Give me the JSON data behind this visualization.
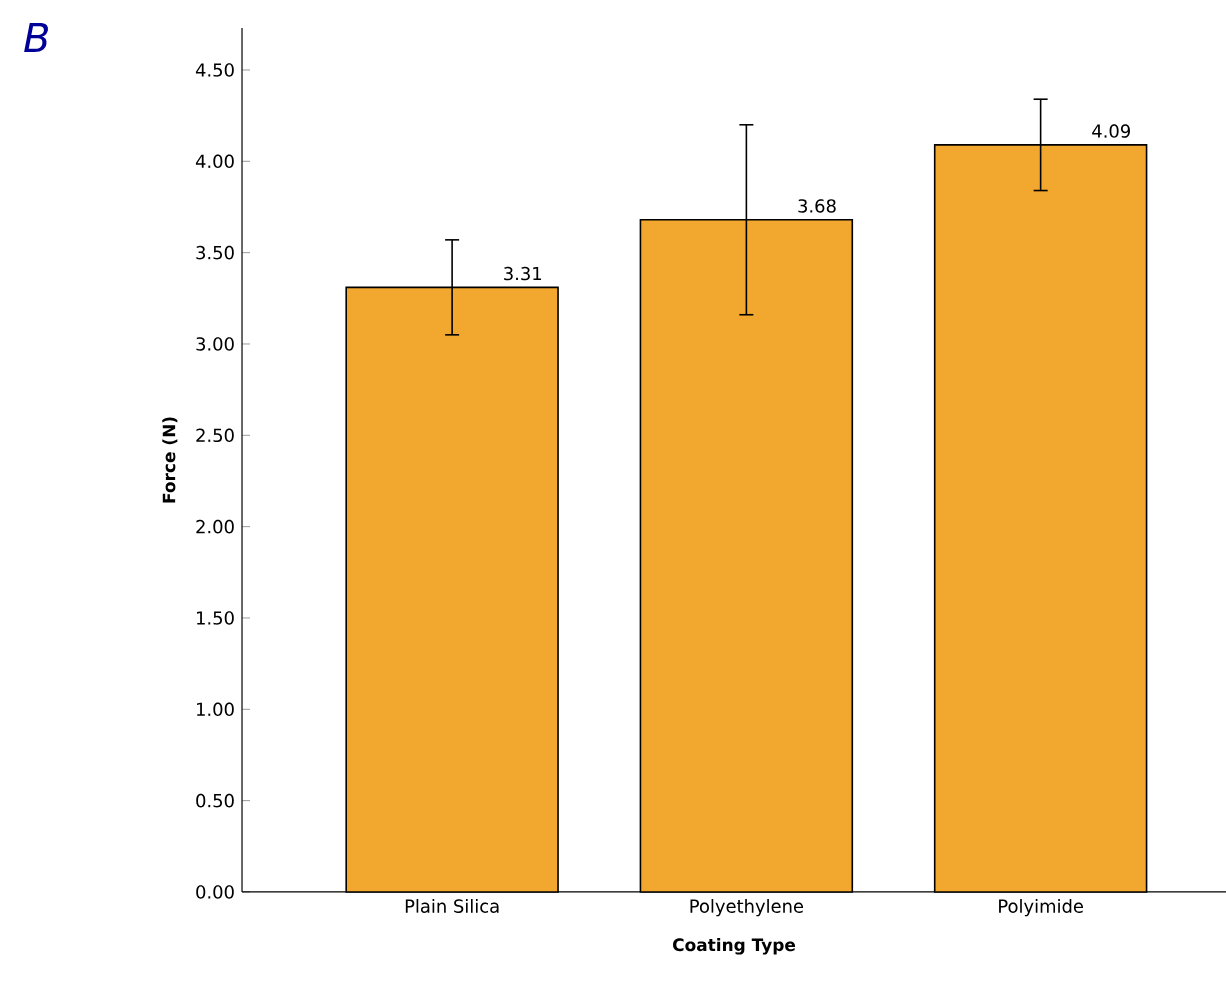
{
  "chart_data": {
    "type": "bar",
    "xlabel": "Coating Type",
    "ylabel": "Force (N)",
    "categories": [
      "Plain Silica",
      "Polyethylene",
      "Polyimide"
    ],
    "values": [
      3.31,
      3.68,
      4.09
    ],
    "errors": [
      0.26,
      0.52,
      0.25
    ],
    "color": "#f2a72e",
    "data_labels": true,
    "ylim": [
      0,
      4.73
    ],
    "yticks": [
      {
        "value": 0,
        "label": "0.00"
      },
      {
        "value": 0.5,
        "label": "0.50"
      },
      {
        "value": 1,
        "label": "1.00"
      },
      {
        "value": 1.5,
        "label": "1.50"
      },
      {
        "value": 2,
        "label": "2.00"
      },
      {
        "value": 2.5,
        "label": "2.50"
      },
      {
        "value": 3,
        "label": "3.00"
      },
      {
        "value": 3.5,
        "label": "3.50"
      },
      {
        "value": 4,
        "label": "4.00"
      },
      {
        "value": 4.5,
        "label": "4.50"
      }
    ],
    "grid": false,
    "annotations": [
      "B"
    ]
  }
}
